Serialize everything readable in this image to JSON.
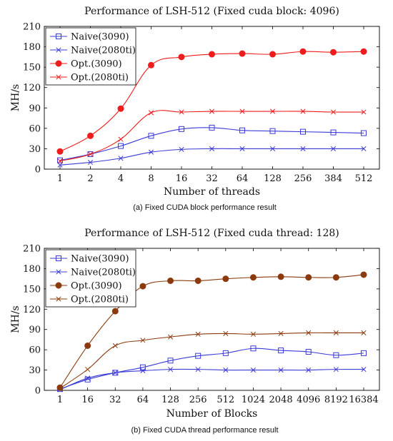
{
  "chart_data": [
    {
      "type": "line",
      "title": "Performance of LSH-512 (Fixed cuda block: 4096)",
      "xlabel": "Number of threads",
      "ylabel": "MH/s",
      "caption": "(a) Fixed CUDA block performance result",
      "categories": [
        "1",
        "2",
        "4",
        "8",
        "16",
        "32",
        "64",
        "128",
        "256",
        "384",
        "512"
      ],
      "ylim": [
        0,
        210
      ],
      "yticks": [
        0,
        30,
        60,
        90,
        120,
        150,
        180,
        210
      ],
      "grid": false,
      "legend_position": "top-left",
      "series": [
        {
          "name": "Naive(3090)",
          "color": "#3b3bd6",
          "marker": "square",
          "values": [
            13,
            22,
            34,
            49,
            59,
            61,
            57,
            56,
            55,
            54,
            53
          ]
        },
        {
          "name": "Naive(2080ti)",
          "color": "#3b3bd6",
          "marker": "x",
          "values": [
            6,
            10,
            16,
            25,
            29,
            30,
            30,
            30,
            30,
            30,
            30
          ]
        },
        {
          "name": "Opt.(3090)",
          "color": "#ee1c1c",
          "marker": "circle",
          "values": [
            26,
            49,
            89,
            153,
            165,
            169,
            170,
            169,
            173,
            172,
            173
          ]
        },
        {
          "name": "Opt.(2080ti)",
          "color": "#ee1c1c",
          "marker": "x",
          "values": [
            12,
            22,
            44,
            83,
            84,
            85,
            85,
            85,
            85,
            84,
            84
          ]
        }
      ]
    },
    {
      "type": "line",
      "title": "Performance of LSH-512 (Fixed cuda thread: 128)",
      "xlabel": "Number of Blocks",
      "ylabel": "MH/s",
      "caption": "(b) Fixed CUDA thread performance result",
      "categories": [
        "1",
        "16",
        "32",
        "64",
        "128",
        "256",
        "512",
        "1024",
        "2048",
        "4096",
        "8192",
        "16384"
      ],
      "ylim": [
        0,
        210
      ],
      "yticks": [
        0,
        30,
        60,
        90,
        120,
        150,
        180,
        210
      ],
      "grid": false,
      "legend_position": "top-left",
      "series": [
        {
          "name": "Naive(3090)",
          "color": "#3b3bd6",
          "marker": "square",
          "values": [
            2,
            16,
            26,
            34,
            44,
            51,
            55,
            62,
            59,
            57,
            52,
            55
          ]
        },
        {
          "name": "Naive(2080ti)",
          "color": "#3b3bd6",
          "marker": "x",
          "values": [
            1,
            18,
            26,
            29,
            31,
            31,
            30,
            30,
            30,
            30,
            31,
            31
          ]
        },
        {
          "name": "Opt.(3090)",
          "color": "#8b3a0e",
          "marker": "circle",
          "values": [
            4,
            66,
            117,
            154,
            162,
            162,
            165,
            167,
            168,
            167,
            167,
            171
          ]
        },
        {
          "name": "Opt.(2080ti)",
          "color": "#8b3a0e",
          "marker": "x",
          "values": [
            3,
            31,
            66,
            74,
            79,
            83,
            84,
            83,
            84,
            85,
            85,
            85
          ]
        }
      ]
    }
  ]
}
